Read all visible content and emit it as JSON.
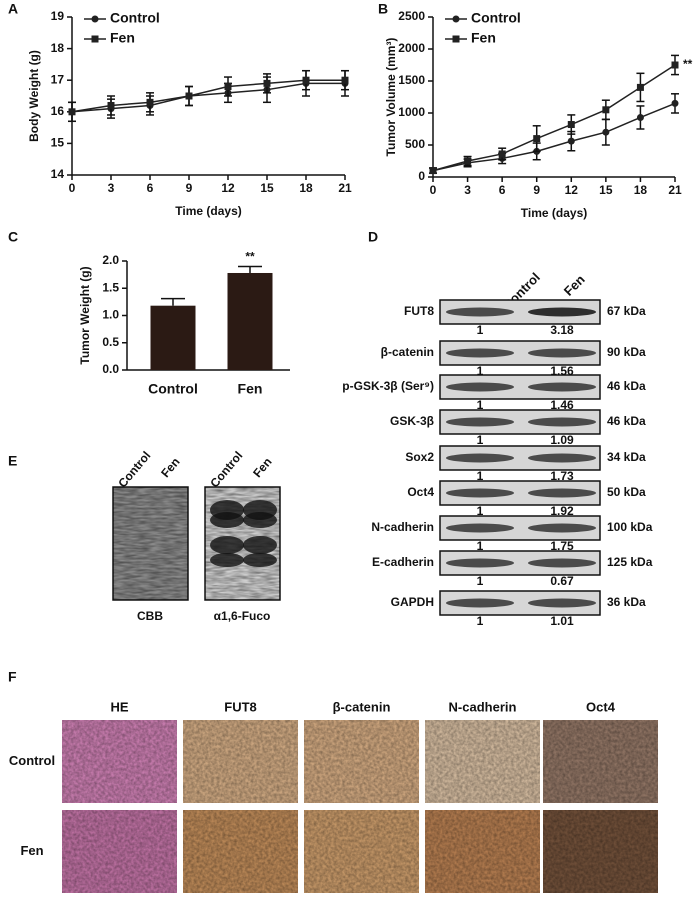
{
  "panel_letters": [
    "A",
    "B",
    "C",
    "D",
    "E",
    "F"
  ],
  "chart_data": [
    {
      "type": "line",
      "y_label": "Body Weight (g)",
      "x_label": "Time (days)",
      "x": [
        0,
        3,
        6,
        9,
        12,
        15,
        18,
        21
      ],
      "xlim": [
        0,
        21
      ],
      "xticks": [
        0,
        3,
        6,
        9,
        12,
        15,
        18,
        21
      ],
      "ylim": [
        14,
        19
      ],
      "yticks": [
        14,
        15,
        16,
        17,
        18,
        19
      ],
      "series": [
        {
          "name": "Control",
          "marker": "circle",
          "color": "#222222",
          "values": [
            16.0,
            16.1,
            16.2,
            16.5,
            16.6,
            16.7,
            16.9,
            16.9
          ],
          "errors": [
            0.3,
            0.3,
            0.3,
            0.3,
            0.3,
            0.4,
            0.4,
            0.4
          ]
        },
        {
          "name": "Fen",
          "marker": "square",
          "color": "#222222",
          "values": [
            16.0,
            16.2,
            16.3,
            16.5,
            16.8,
            16.9,
            17.0,
            17.0
          ],
          "errors": [
            0.3,
            0.3,
            0.3,
            0.3,
            0.3,
            0.3,
            0.3,
            0.3
          ]
        }
      ]
    },
    {
      "type": "line",
      "y_label": "Tumor Volume (mm³)",
      "x_label": "Time (days)",
      "annotation": "**",
      "x": [
        0,
        3,
        6,
        9,
        12,
        15,
        18,
        21
      ],
      "xlim": [
        0,
        21
      ],
      "xticks": [
        0,
        3,
        6,
        9,
        12,
        15,
        18,
        21
      ],
      "ylim": [
        0,
        2500
      ],
      "yticks": [
        0,
        500,
        1000,
        1500,
        2000,
        2500
      ],
      "series": [
        {
          "name": "Control",
          "marker": "circle",
          "color": "#222222",
          "values": [
            100,
            220,
            290,
            400,
            560,
            700,
            930,
            1150
          ],
          "errors": [
            40,
            60,
            80,
            130,
            150,
            200,
            180,
            150
          ]
        },
        {
          "name": "Fen",
          "marker": "square",
          "color": "#222222",
          "values": [
            100,
            250,
            360,
            600,
            820,
            1050,
            1400,
            1750
          ],
          "errors": [
            40,
            70,
            90,
            200,
            150,
            150,
            220,
            150
          ]
        }
      ]
    },
    {
      "type": "bar",
      "y_label": "Tumor Weight (g)",
      "annotation": "**",
      "categories": [
        "Control",
        "Fen"
      ],
      "values": [
        1.18,
        1.78
      ],
      "errors": [
        0.13,
        0.12
      ],
      "color": "#2b1a14",
      "ylim": [
        0,
        2.0
      ],
      "yticks": [
        {
          "value": 0,
          "label": "0.0"
        },
        {
          "value": 0.5,
          "label": "0.5"
        },
        {
          "value": 1.0,
          "label": "1.0"
        },
        {
          "value": 1.5,
          "label": "1.5"
        },
        {
          "value": 2.0,
          "label": "2.0"
        }
      ]
    }
  ],
  "blot": {
    "header": [
      "Control",
      "Fen"
    ],
    "rows": [
      {
        "protein": "FUT8",
        "size": "67 kDa",
        "ratios": [
          "1",
          "3.18"
        ]
      },
      {
        "protein": "β-catenin",
        "size": "90 kDa",
        "ratios": [
          "1",
          "1.56"
        ]
      },
      {
        "protein": "p-GSK-3β (Ser⁹)",
        "size": "46 kDa",
        "ratios": [
          "1",
          "1.46"
        ]
      },
      {
        "protein": "GSK-3β",
        "size": "46 kDa",
        "ratios": [
          "1",
          "1.09"
        ]
      },
      {
        "protein": "Sox2",
        "size": "34 kDa",
        "ratios": [
          "1",
          "1.73"
        ]
      },
      {
        "protein": "Oct4",
        "size": "50 kDa",
        "ratios": [
          "1",
          "1.92"
        ]
      },
      {
        "protein": "N-cadherin",
        "size": "100 kDa",
        "ratios": [
          "1",
          "1.75"
        ]
      },
      {
        "protein": "E-cadherin",
        "size": "125 kDa",
        "ratios": [
          "1",
          "0.67"
        ]
      },
      {
        "protein": "GAPDH",
        "size": "36 kDa",
        "ratios": [
          "1",
          "1.01"
        ]
      }
    ]
  },
  "gel": {
    "panels": [
      {
        "lanes": [
          "Control",
          "Fen"
        ],
        "caption": "CBB"
      },
      {
        "lanes": [
          "Control",
          "Fen"
        ],
        "caption": "α1,6-Fuco"
      }
    ]
  },
  "ihc": {
    "columns": [
      "HE",
      "FUT8",
      "β-catenin",
      "N-cadherin",
      "Oct4"
    ],
    "rows": [
      "Control",
      "Fen"
    ]
  }
}
